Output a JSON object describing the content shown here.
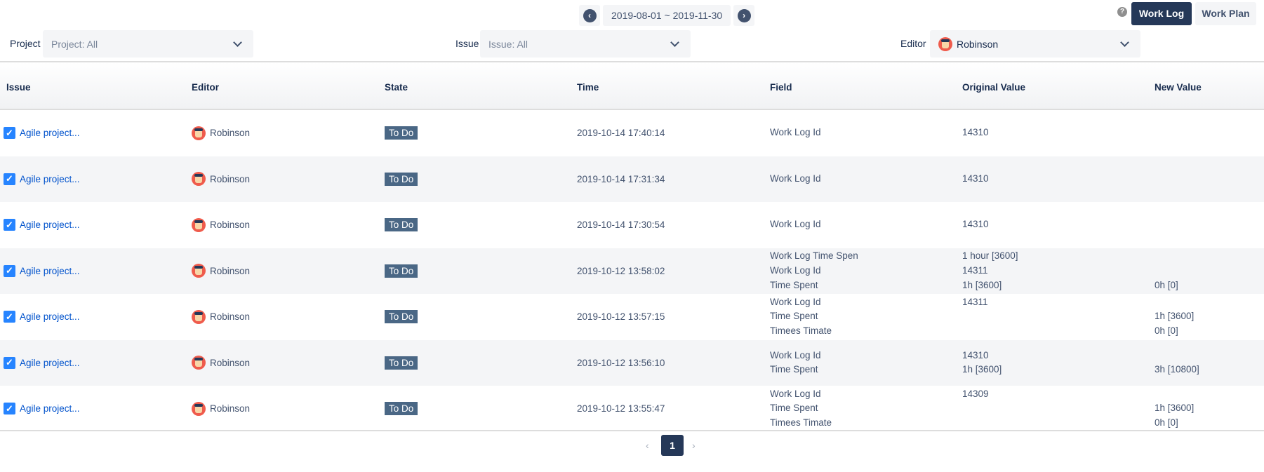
{
  "date_range": {
    "label": "2019-08-01 ~ 2019-11-30",
    "prev_icon": "chevron-left-icon",
    "next_icon": "chevron-right-icon"
  },
  "toolbar": {
    "help_icon": "?",
    "work_log": "Work Log",
    "work_plan": "Work Plan"
  },
  "filters": {
    "project": {
      "label": "Project",
      "value": "Project: All"
    },
    "issue": {
      "label": "Issue",
      "value": "Issue: All"
    },
    "editor": {
      "label": "Editor",
      "value": "Robinson"
    }
  },
  "columns": [
    "Issue",
    "Editor",
    "State",
    "Time",
    "Field",
    "Original Value",
    "New Value"
  ],
  "rows": [
    {
      "issue": "Agile project...",
      "editor": "Robinson",
      "state": "To Do",
      "time": "2019-10-14 17:40:14",
      "changes": [
        {
          "field": "Work Log Id",
          "original": "14310",
          "new": ""
        }
      ]
    },
    {
      "issue": "Agile project...",
      "editor": "Robinson",
      "state": "To Do",
      "time": "2019-10-14 17:31:34",
      "changes": [
        {
          "field": "Work Log Id",
          "original": "14310",
          "new": ""
        }
      ]
    },
    {
      "issue": "Agile project...",
      "editor": "Robinson",
      "state": "To Do",
      "time": "2019-10-14 17:30:54",
      "changes": [
        {
          "field": "Work Log Id",
          "original": "14310",
          "new": ""
        }
      ]
    },
    {
      "issue": "Agile project...",
      "editor": "Robinson",
      "state": "To Do",
      "time": "2019-10-12 13:58:02",
      "changes": [
        {
          "field": "Work Log Time Spen",
          "original": "1 hour [3600]",
          "new": ""
        },
        {
          "field": "Work Log Id",
          "original": "14311",
          "new": ""
        },
        {
          "field": "Time Spent",
          "original": "1h [3600]",
          "new": "0h [0]"
        }
      ]
    },
    {
      "issue": "Agile project...",
      "editor": "Robinson",
      "state": "To Do",
      "time": "2019-10-12 13:57:15",
      "changes": [
        {
          "field": "Work Log Id",
          "original": "14311",
          "new": ""
        },
        {
          "field": "Time Spent",
          "original": "",
          "new": "1h [3600]"
        },
        {
          "field": "Timees Timate",
          "original": "",
          "new": "0h [0]"
        }
      ]
    },
    {
      "issue": "Agile project...",
      "editor": "Robinson",
      "state": "To Do",
      "time": "2019-10-12 13:56:10",
      "changes": [
        {
          "field": "Work Log Id",
          "original": "14310",
          "new": ""
        },
        {
          "field": "Time Spent",
          "original": "1h [3600]",
          "new": "3h [10800]"
        }
      ]
    },
    {
      "issue": "Agile project...",
      "editor": "Robinson",
      "state": "To Do",
      "time": "2019-10-12 13:55:47",
      "changes": [
        {
          "field": "Work Log Id",
          "original": "14309",
          "new": ""
        },
        {
          "field": "Time Spent",
          "original": "",
          "new": "1h [3600]"
        },
        {
          "field": "Timees Timate",
          "original": "",
          "new": "0h [0]"
        }
      ]
    }
  ],
  "pagination": {
    "current": "1",
    "prev": "‹",
    "next": "›"
  }
}
